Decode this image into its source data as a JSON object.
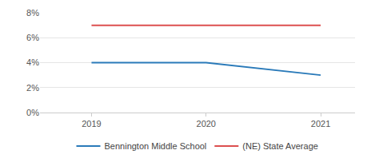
{
  "chart_data": {
    "type": "line",
    "categories": [
      "2019",
      "2020",
      "2021"
    ],
    "series": [
      {
        "name": "Bennington Middle School",
        "color": "#2a7ab9",
        "values": [
          4,
          4,
          3
        ]
      },
      {
        "name": "(NE) State Average",
        "color": "#dc4f4f",
        "values": [
          7,
          7,
          7
        ]
      }
    ],
    "ylim": [
      0,
      8
    ],
    "yticks": [
      {
        "value": 0,
        "label": "0%"
      },
      {
        "value": 2,
        "label": "2%"
      },
      {
        "value": 4,
        "label": "4%"
      },
      {
        "value": 6,
        "label": "6%"
      },
      {
        "value": 8,
        "label": "8%"
      }
    ],
    "grid": true,
    "legend": "bottom"
  }
}
